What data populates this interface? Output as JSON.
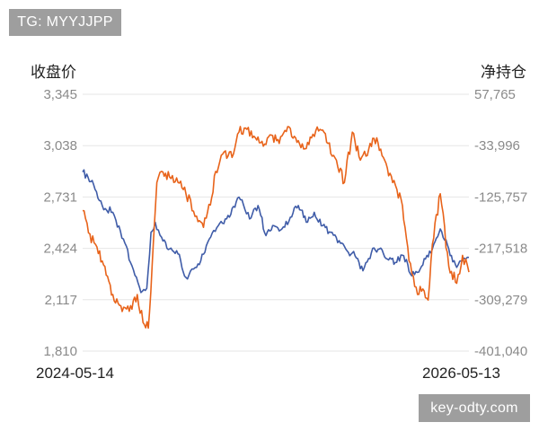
{
  "watermarks": {
    "top_left": "TG: MYYJJPP",
    "bottom_right": "key-odty.com"
  },
  "colors": {
    "close_price": "#3f5ca8",
    "net_position": "#e8631a",
    "grid": "#e6e6e6",
    "tick": "#8a8a8a"
  },
  "chart_data": {
    "type": "line",
    "title": "",
    "ylabel": "收盘价",
    "y2label": "净持仓",
    "x_range": [
      "2024-05-14",
      "2026-05-13"
    ],
    "x_tick_labels": [
      "2024-05-14",
      "2026-05-13"
    ],
    "ylim": [
      1810,
      3345
    ],
    "y2lim": [
      -401040,
      57765
    ],
    "y_ticks": [
      "3,345",
      "3,038",
      "2,731",
      "2,424",
      "2,117",
      "1,810"
    ],
    "y2_ticks": [
      "57,765",
      "-33,996",
      "-125,757",
      "-217,518",
      "-309,279",
      "-401,040"
    ],
    "grid": true,
    "series": [
      {
        "key": "close",
        "axis": "left",
        "color": "#3f5ca8",
        "x": [
          "2024-05-14",
          "2024-06-01",
          "2024-06-20",
          "2024-07-10",
          "2024-07-30",
          "2024-08-15",
          "2024-09-01",
          "2024-09-12",
          "2024-09-20",
          "2024-09-28",
          "2024-10-10",
          "2024-10-25",
          "2024-11-10",
          "2024-11-25",
          "2024-12-15",
          "2025-01-05",
          "2025-01-25",
          "2025-02-15",
          "2025-03-05",
          "2025-03-25",
          "2025-04-10",
          "2025-04-25",
          "2025-05-10",
          "2025-05-25",
          "2025-06-10",
          "2025-06-25",
          "2025-07-10",
          "2025-07-25",
          "2025-08-10",
          "2025-08-25",
          "2025-09-10",
          "2025-09-25",
          "2025-10-10",
          "2025-10-25",
          "2025-11-10",
          "2025-11-25",
          "2025-12-10",
          "2025-12-25",
          "2026-01-10",
          "2026-01-25",
          "2026-02-10",
          "2026-02-20",
          "2026-03-05",
          "2026-03-20",
          "2026-04-05",
          "2026-04-20",
          "2026-05-01",
          "2026-05-13"
        ],
        "y": [
          2880,
          2830,
          2680,
          2640,
          2480,
          2320,
          2160,
          2185,
          2520,
          2580,
          2490,
          2420,
          2390,
          2250,
          2310,
          2460,
          2560,
          2610,
          2730,
          2600,
          2680,
          2500,
          2560,
          2540,
          2610,
          2680,
          2580,
          2640,
          2560,
          2520,
          2470,
          2410,
          2380,
          2290,
          2400,
          2420,
          2360,
          2340,
          2380,
          2260,
          2300,
          2360,
          2420,
          2540,
          2420,
          2310,
          2350,
          2370
        ]
      },
      {
        "key": "net_position",
        "axis": "right",
        "color": "#e8631a",
        "x": [
          "2024-05-14",
          "2024-05-25",
          "2024-06-10",
          "2024-06-25",
          "2024-07-10",
          "2024-07-25",
          "2024-08-10",
          "2024-08-25",
          "2024-09-05",
          "2024-09-15",
          "2024-09-22",
          "2024-10-01",
          "2024-10-10",
          "2024-10-25",
          "2024-11-10",
          "2024-11-25",
          "2024-12-15",
          "2024-12-28",
          "2025-01-10",
          "2025-01-20",
          "2025-02-05",
          "2025-02-20",
          "2025-03-05",
          "2025-03-20",
          "2025-04-05",
          "2025-04-20",
          "2025-05-05",
          "2025-05-20",
          "2025-06-05",
          "2025-06-20",
          "2025-07-05",
          "2025-07-20",
          "2025-08-05",
          "2025-08-20",
          "2025-09-05",
          "2025-09-20",
          "2025-10-05",
          "2025-10-20",
          "2025-11-05",
          "2025-11-20",
          "2025-12-05",
          "2025-12-20",
          "2026-01-05",
          "2026-01-20",
          "2026-02-05",
          "2026-02-15",
          "2026-02-25",
          "2026-03-05",
          "2026-03-20",
          "2026-04-05",
          "2026-04-20",
          "2026-05-01",
          "2026-05-13"
        ],
        "y": [
          -150000,
          -190000,
          -215000,
          -250000,
          -300000,
          -320000,
          -330000,
          -300000,
          -350000,
          -360000,
          -250000,
          -100000,
          -80000,
          -90000,
          -100000,
          -120000,
          -160000,
          -180000,
          -140000,
          -80000,
          -45000,
          -55000,
          -10000,
          -5000,
          -20000,
          -35000,
          -15000,
          -30000,
          0,
          -20000,
          -40000,
          -20000,
          -5000,
          -30000,
          -60000,
          -100000,
          -10000,
          -60000,
          -40000,
          -20000,
          -60000,
          -100000,
          -130000,
          -240000,
          -300000,
          -290000,
          -310000,
          -210000,
          -120000,
          -250000,
          -280000,
          -230000,
          -260000
        ]
      }
    ]
  }
}
